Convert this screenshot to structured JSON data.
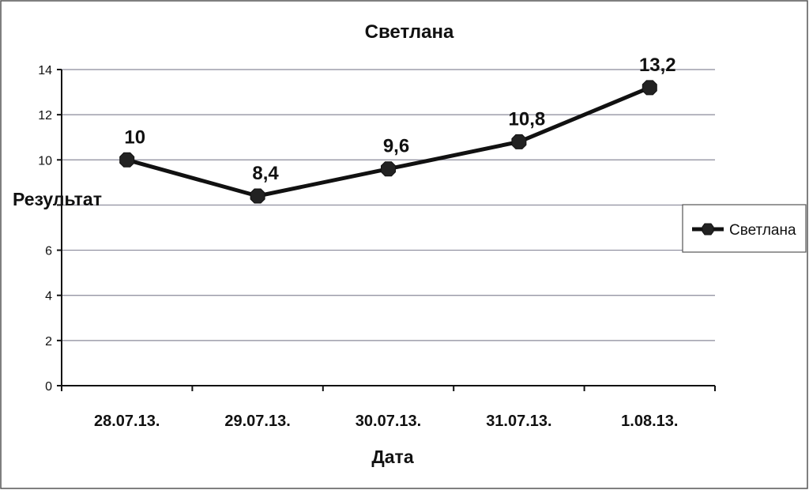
{
  "chart_data": {
    "type": "line",
    "title": "Светлана",
    "xlabel": "Дата",
    "ylabel": "Результат",
    "categories": [
      "28.07.13.",
      "29.07.13.",
      "30.07.13.",
      "31.07.13.",
      "1.08.13."
    ],
    "series": [
      {
        "name": "Светлана",
        "values": [
          10,
          8.4,
          9.6,
          10.8,
          13.2
        ],
        "labels": [
          "10",
          "8,4",
          "9,6",
          "10,8",
          "13,2"
        ]
      }
    ],
    "ylim": [
      0,
      14
    ],
    "yticks": [
      "0",
      "2",
      "4",
      "6",
      "",
      "10",
      "12",
      "14"
    ],
    "grid": true,
    "legend": "right",
    "colors": {
      "series": "#111111",
      "grid": "#8a8a9a"
    }
  }
}
